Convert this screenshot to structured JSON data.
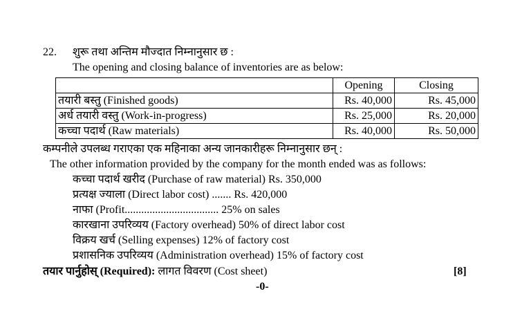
{
  "question_number": "22.",
  "intro_nepali": "शुरू तथा अन्तिम मौज्दात निम्नानुसार छ :",
  "intro_english": "The opening and closing balance of inventories are as below:",
  "table": {
    "header": [
      "Opening",
      "Closing"
    ],
    "rows": [
      [
        "तयारी बस्तु (Finished goods)",
        "Rs. 40,000",
        "Rs. 45,000"
      ],
      [
        "अर्ध तयारी वस्तु (Work-in-progress)",
        "Rs. 25,000",
        "Rs. 20,000"
      ],
      [
        "कच्चा पदार्थ (Raw materials)",
        "Rs. 40,000",
        "Rs. 50,000"
      ]
    ]
  },
  "info_nepali": "कम्पनीले उपलब्ध गराएका एक महिनाका अन्य जानकारीहरू निम्नानुसार छन् :",
  "info_english": "The other information provided by the company for the month ended was as follows:",
  "items": [
    "कच्चा पदार्थ खरीद (Purchase of raw material) Rs. 350,000",
    "प्रत्यक्ष ज्याला (Direct labor cost) ....... Rs. 420,000",
    "नाफा (Profit.................................. 25% on sales",
    "कारखाना उपरिव्यय (Factory overhead) 50% of direct labor cost",
    "विक्रय खर्च (Selling expenses) 12% of factory cost",
    "प्रशासनिक उपरिव्यय (Administration overhead) 15% of factory cost"
  ],
  "required_label": "तयार पार्नुहोस् (Required):",
  "required_text": "लागत विवरण (Cost sheet)",
  "marks": "[8]",
  "footer": "-0-"
}
